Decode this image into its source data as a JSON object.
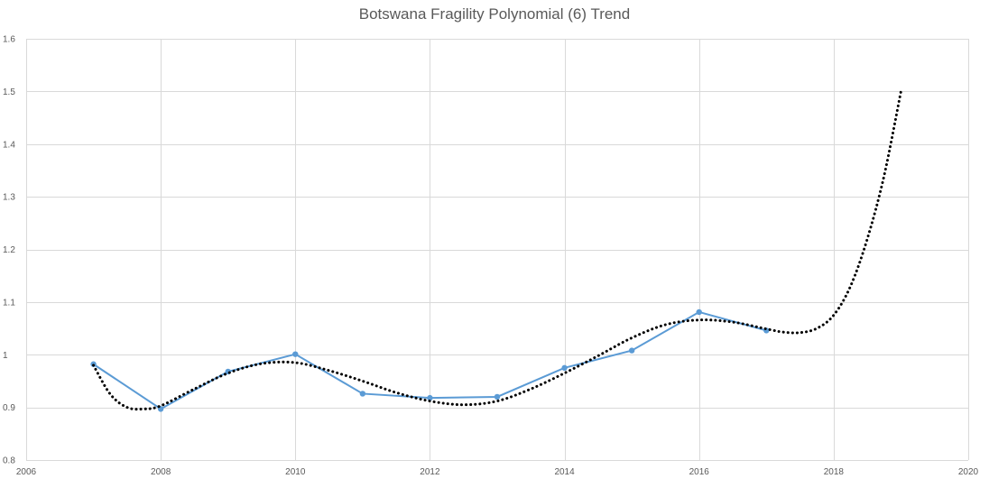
{
  "chart_data": {
    "type": "line",
    "title": "Botswana Fragility Polynomial (6) Trend",
    "xlabel": "",
    "ylabel": "",
    "xlim": [
      2006,
      2020
    ],
    "ylim": [
      0.8,
      1.6
    ],
    "x_ticks": [
      2006,
      2008,
      2010,
      2012,
      2014,
      2016,
      2018,
      2020
    ],
    "y_ticks": [
      0.8,
      0.9,
      1,
      1.1,
      1.2,
      1.3,
      1.4,
      1.5,
      1.6
    ],
    "x_tick_labels": [
      "2006",
      "2008",
      "2010",
      "2012",
      "2014",
      "2016",
      "2018",
      "2020"
    ],
    "y_tick_labels": [
      "0.8",
      "0.9",
      "1",
      "1.1",
      "1.2",
      "1.3",
      "1.4",
      "1.5",
      "1.6"
    ],
    "grid": true,
    "legend": "none",
    "series": [
      {
        "kind": "data",
        "color": "#5B9BD5",
        "marker": "circle",
        "x": [
          2007,
          2008,
          2009,
          2010,
          2011,
          2012,
          2013,
          2014,
          2015,
          2016,
          2017
        ],
        "y": [
          0.982,
          0.897,
          0.968,
          1.001,
          0.926,
          0.918,
          0.92,
          0.975,
          1.008,
          1.081,
          1.046
        ]
      },
      {
        "kind": "trendline",
        "type": "poly",
        "order": 6,
        "color": "#000000",
        "line_style": "dotted",
        "x": [
          2007,
          2007.25,
          2007.5,
          2007.75,
          2008,
          2008.5,
          2009,
          2009.5,
          2010,
          2010.5,
          2011,
          2011.5,
          2012,
          2012.5,
          2013,
          2013.5,
          2014,
          2014.5,
          2015,
          2015.5,
          2016,
          2016.5,
          2017,
          2017.25,
          2017.5,
          2017.75,
          2018,
          2018.25,
          2018.5,
          2018.75,
          2019
        ],
        "y": [
          0.98,
          0.925,
          0.9,
          0.897,
          0.903,
          0.935,
          0.965,
          0.983,
          0.985,
          0.97,
          0.95,
          0.928,
          0.912,
          0.905,
          0.912,
          0.935,
          0.965,
          0.998,
          1.032,
          1.057,
          1.066,
          1.062,
          1.049,
          1.043,
          1.042,
          1.05,
          1.075,
          1.13,
          1.22,
          1.34,
          1.5
        ]
      }
    ]
  }
}
